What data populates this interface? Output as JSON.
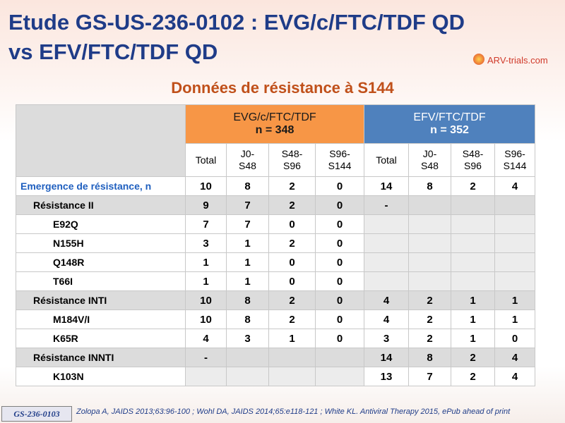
{
  "header": {
    "title_line1": "Etude GS-US-236-0102 : EVG/c/FTC/TDF QD",
    "title_line2": "vs EFV/FTC/TDF QD",
    "logo": "ARV-trials.com"
  },
  "subtitle": "Données de résistance à S144",
  "table": {
    "groups": [
      {
        "name": "EVG/c/FTC/TDF",
        "n": "n = 348",
        "columns": [
          "Total",
          "J0-\nS48",
          "S48-\nS96",
          "S96-\nS144"
        ]
      },
      {
        "name": "EFV/FTC/TDF",
        "n": "n = 352",
        "columns": [
          "Total",
          "J0-\nS48",
          "S48-\nS96",
          "S96-\nS144"
        ]
      }
    ],
    "rows": [
      {
        "label": "Emergence de résistance, n",
        "cells": [
          10,
          8,
          2,
          0,
          14,
          8,
          2,
          4
        ]
      },
      {
        "label": "Résistance II",
        "cells": [
          9,
          7,
          2,
          0,
          "-",
          null,
          null,
          null
        ]
      },
      {
        "label": "E92Q",
        "cells": [
          7,
          7,
          0,
          0,
          null,
          null,
          null,
          null
        ]
      },
      {
        "label": "N155H",
        "cells": [
          3,
          1,
          2,
          0,
          null,
          null,
          null,
          null
        ]
      },
      {
        "label": "Q148R",
        "cells": [
          1,
          1,
          0,
          0,
          null,
          null,
          null,
          null
        ]
      },
      {
        "label": "T66I",
        "cells": [
          1,
          1,
          0,
          0,
          null,
          null,
          null,
          null
        ]
      },
      {
        "label": "Résistance INTI",
        "cells": [
          10,
          8,
          2,
          0,
          4,
          2,
          1,
          1
        ]
      },
      {
        "label": "M184V/I",
        "cells": [
          10,
          8,
          2,
          0,
          4,
          2,
          1,
          1
        ]
      },
      {
        "label": "K65R",
        "cells": [
          4,
          3,
          1,
          0,
          3,
          2,
          1,
          0
        ]
      },
      {
        "label": "Résistance INNTI",
        "cells": [
          "-",
          null,
          null,
          null,
          14,
          8,
          2,
          4
        ]
      },
      {
        "label": "K103N",
        "cells": [
          null,
          null,
          null,
          null,
          13,
          7,
          2,
          4
        ]
      }
    ]
  },
  "footer": {
    "badge": "GS-236-0103",
    "citation": "Zolopa A, JAIDS 2013;63:96-100 ; Wohl DA, JAIDS 2014;65:e118-121 ; White KL. Antiviral Therapy 2015, ePub ahead of print"
  }
}
